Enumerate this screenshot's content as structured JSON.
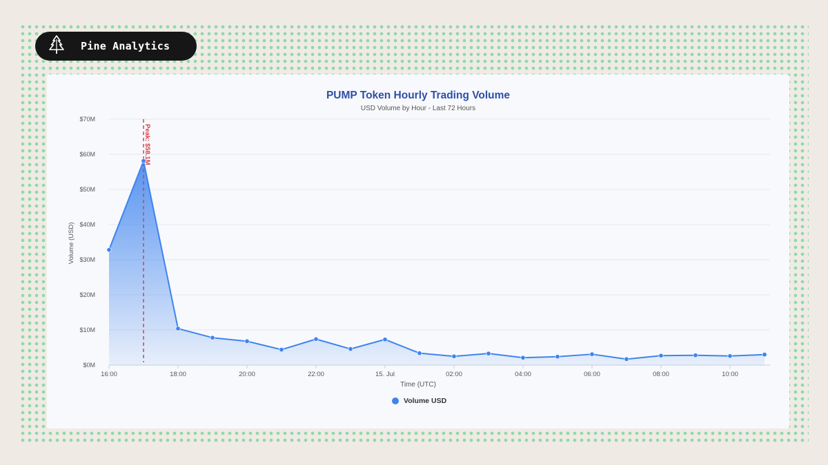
{
  "brand": {
    "name": "Pine Analytics",
    "logo_icon": "pine-tree-icon"
  },
  "colors": {
    "line": "#3f83ee",
    "peak_line": "#d9404a",
    "title": "#2e4fa6",
    "brand_bg": "#161616",
    "dots": "#8fd9ad"
  },
  "chart_data": {
    "type": "area",
    "title": "PUMP Token Hourly Trading Volume",
    "subtitle": "USD Volume by Hour - Last 72 Hours",
    "xlabel": "Time (UTC)",
    "ylabel": "Volume (USD)",
    "ylim": [
      0,
      70
    ],
    "yticks": [
      "$0M",
      "$10M",
      "$20M",
      "$30M",
      "$40M",
      "$50M",
      "$60M",
      "$70M"
    ],
    "xticks": [
      "16:00",
      "18:00",
      "20:00",
      "22:00",
      "15. Jul",
      "02:00",
      "04:00",
      "06:00",
      "08:00",
      "10:00"
    ],
    "grid": true,
    "legend": "bottom-center",
    "series": [
      {
        "name": "Volume USD",
        "x": [
          "16:00",
          "17:00",
          "18:00",
          "19:00",
          "20:00",
          "21:00",
          "22:00",
          "23:00",
          "00:00",
          "01:00",
          "02:00",
          "03:00",
          "04:00",
          "05:00",
          "06:00",
          "07:00",
          "08:00",
          "09:00",
          "10:00",
          "11:00"
        ],
        "values": [
          32.8,
          58.1,
          10.4,
          7.8,
          6.8,
          4.4,
          7.4,
          4.6,
          7.3,
          3.4,
          2.5,
          3.3,
          2.1,
          2.4,
          3.1,
          1.7,
          2.7,
          2.8,
          2.6,
          3.0
        ]
      }
    ],
    "annotations": [
      {
        "label": "Peak: $58.1M",
        "x": "17:00"
      }
    ]
  }
}
